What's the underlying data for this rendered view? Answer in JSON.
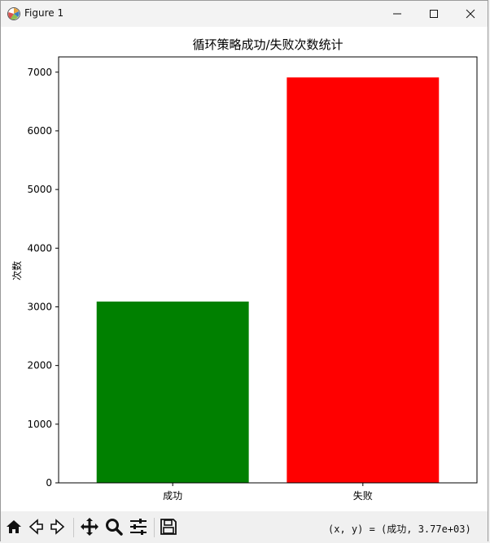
{
  "window": {
    "title": "Figure 1",
    "minimize_icon": "minimize-icon",
    "maximize_icon": "maximize-icon",
    "close_icon": "close-icon"
  },
  "toolbar": {
    "icons": [
      "home-icon",
      "back-arrow-icon",
      "forward-arrow-icon",
      "pan-move-icon",
      "zoom-magnifier-icon",
      "configure-subplots-icon",
      "save-floppy-icon"
    ],
    "coordinates": "(x, y) = (成功, 3.77e+03)"
  },
  "chart_data": {
    "type": "bar",
    "title": "循环策略成功/失败次数统计",
    "xlabel": "",
    "ylabel": "次数",
    "categories": [
      "成功",
      "失败"
    ],
    "values": [
      3090,
      6910
    ],
    "colors": [
      "#008000",
      "#ff0000"
    ],
    "ylim": [
      0,
      7260
    ],
    "yticks": [
      0,
      1000,
      2000,
      3000,
      4000,
      5000,
      6000,
      7000
    ],
    "grid": false,
    "legend": "none"
  }
}
